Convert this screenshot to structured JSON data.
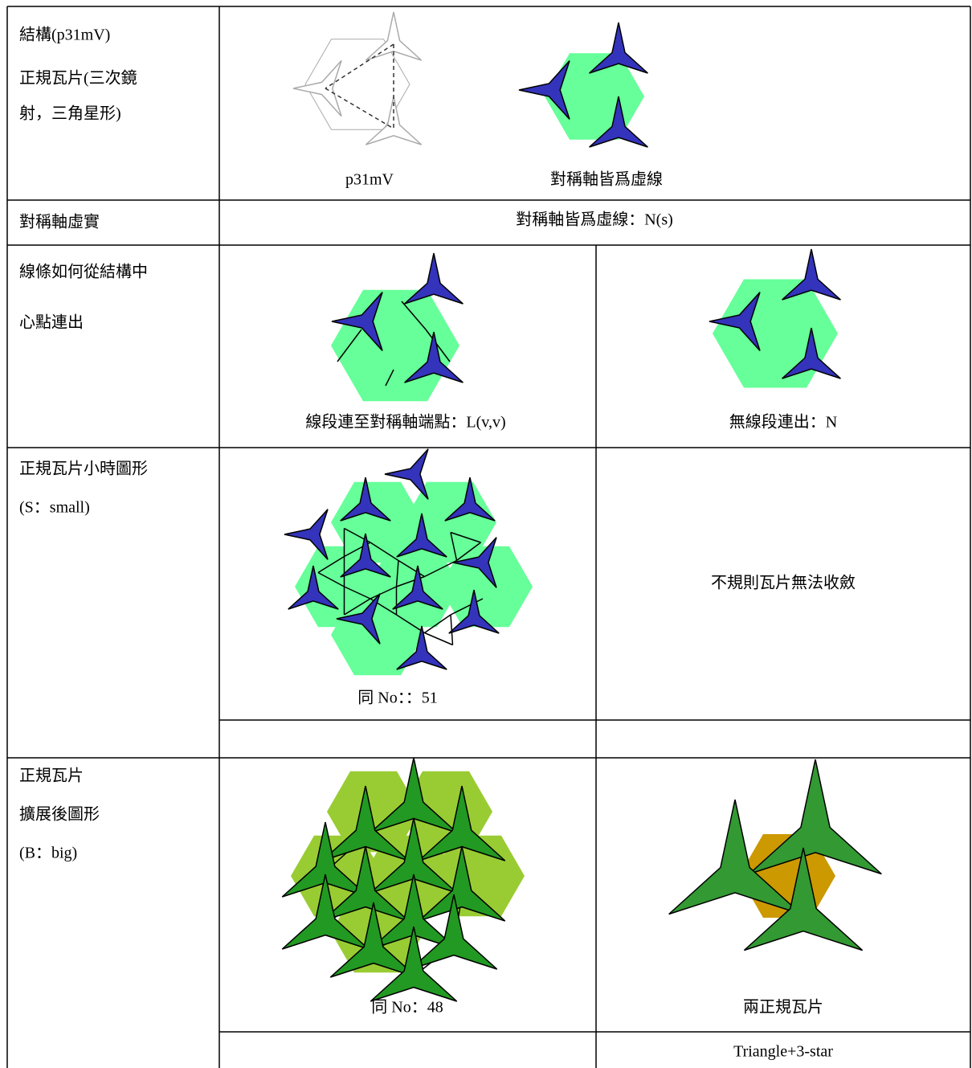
{
  "table": {
    "rows": [
      {
        "label": [
          "結構(p31mV)",
          "正規瓦片(三次鏡",
          "射，三角星形)"
        ],
        "captions": [
          "p31mV",
          "對稱軸皆爲虛線"
        ]
      },
      {
        "label": [
          "對稱軸虛實"
        ],
        "text": "對稱軸皆爲虛線：N(s)"
      },
      {
        "label": [
          "線條如何從結構中",
          "心點連出"
        ],
        "cells": [
          "線段連至對稱軸端點：L(v,v)",
          "無線段連出：N"
        ]
      },
      {
        "label": [
          "正規瓦片小時圖形",
          "(S：small)"
        ],
        "cells": [
          "同 No：：51",
          "不規則瓦片無法收斂"
        ]
      },
      {
        "label": [
          "正規瓦片",
          "擴展後圖形",
          "(B：big)"
        ],
        "cells": [
          "同 No：48",
          "兩正規瓦片"
        ],
        "note": "Triangle+3-star"
      }
    ]
  }
}
